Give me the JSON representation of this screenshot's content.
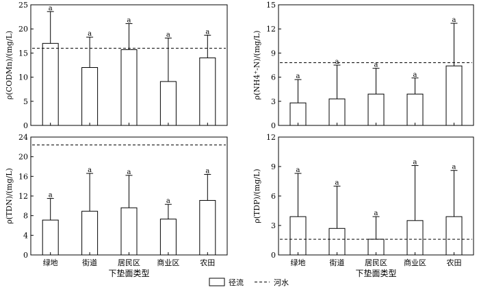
{
  "chart_data": [
    {
      "type": "bar",
      "ylabel": "ρ(CODMn)/(mg/L)",
      "xlabel": "",
      "categories": [
        "",
        "",
        "",
        "",
        ""
      ],
      "ylim": [
        0,
        25
      ],
      "yticks": [
        0,
        5,
        10,
        15,
        20,
        25
      ],
      "series": [
        {
          "name": "径流",
          "values": [
            17.0,
            12.0,
            15.7,
            9.1,
            14.0
          ],
          "errors": [
            6.6,
            6.3,
            5.4,
            9.0,
            4.7
          ]
        }
      ],
      "letters": [
        "a",
        "a",
        "a",
        "a",
        "a"
      ],
      "reference_line": {
        "name": "河水",
        "value": 16.0,
        "style": "dashed"
      }
    },
    {
      "type": "bar",
      "ylabel": "ρ(NH4⁺-N)/(mg/L)",
      "xlabel": "",
      "categories": [
        "",
        "",
        "",
        "",
        ""
      ],
      "ylim": [
        0,
        15
      ],
      "yticks": [
        0,
        3,
        6,
        9,
        12,
        15
      ],
      "series": [
        {
          "name": "径流",
          "values": [
            2.8,
            3.3,
            3.9,
            3.9,
            7.4
          ],
          "errors": [
            2.9,
            4.2,
            3.2,
            2.0,
            5.3
          ]
        }
      ],
      "letters": [
        "a",
        "a",
        "a",
        "a",
        "a"
      ],
      "reference_line": {
        "name": "河水",
        "value": 7.8,
        "style": "dashed"
      }
    },
    {
      "type": "bar",
      "ylabel": "ρ(TDN)/(mg/L)",
      "xlabel": "下垫面类型",
      "categories": [
        "绿地",
        "街道",
        "居民区",
        "商业区",
        "农田"
      ],
      "ylim": [
        0,
        24
      ],
      "yticks": [
        0,
        4,
        8,
        12,
        16,
        20,
        24
      ],
      "series": [
        {
          "name": "径流",
          "values": [
            7.1,
            8.9,
            9.6,
            7.3,
            11.1
          ],
          "errors": [
            4.4,
            7.7,
            6.6,
            3.0,
            5.3
          ]
        }
      ],
      "letters": [
        "a",
        "a",
        "a",
        "a",
        "a"
      ],
      "reference_line": {
        "name": "河水",
        "value": 22.4,
        "style": "dashed"
      }
    },
    {
      "type": "bar",
      "ylabel": "ρ(TDP)/(mg/L)",
      "xlabel": "下垫面类型",
      "categories": [
        "绿地",
        "街道",
        "居民区",
        "商业区",
        "农田"
      ],
      "ylim": [
        0,
        12
      ],
      "yticks": [
        0,
        3,
        6,
        9,
        12
      ],
      "series": [
        {
          "name": "径流",
          "values": [
            3.9,
            2.7,
            1.6,
            3.5,
            3.9
          ],
          "errors": [
            4.4,
            4.3,
            2.3,
            5.6,
            4.7
          ]
        }
      ],
      "letters": [
        "a",
        "a",
        "a",
        "a",
        "a"
      ],
      "reference_line": {
        "name": "河水",
        "value": 1.6,
        "style": "dashed"
      }
    }
  ],
  "legend": {
    "bar_label": "径流",
    "line_label": "河水"
  }
}
